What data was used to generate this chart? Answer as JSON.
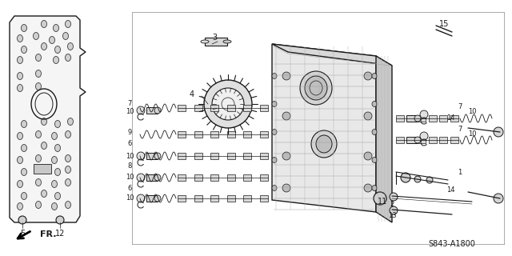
{
  "diagram_code": "S843-A1800",
  "bg_color": "#ffffff",
  "line_color": "#1a1a1a",
  "label_color": "#1a1a1a",
  "fig_width": 6.4,
  "fig_height": 3.2,
  "dpi": 100
}
